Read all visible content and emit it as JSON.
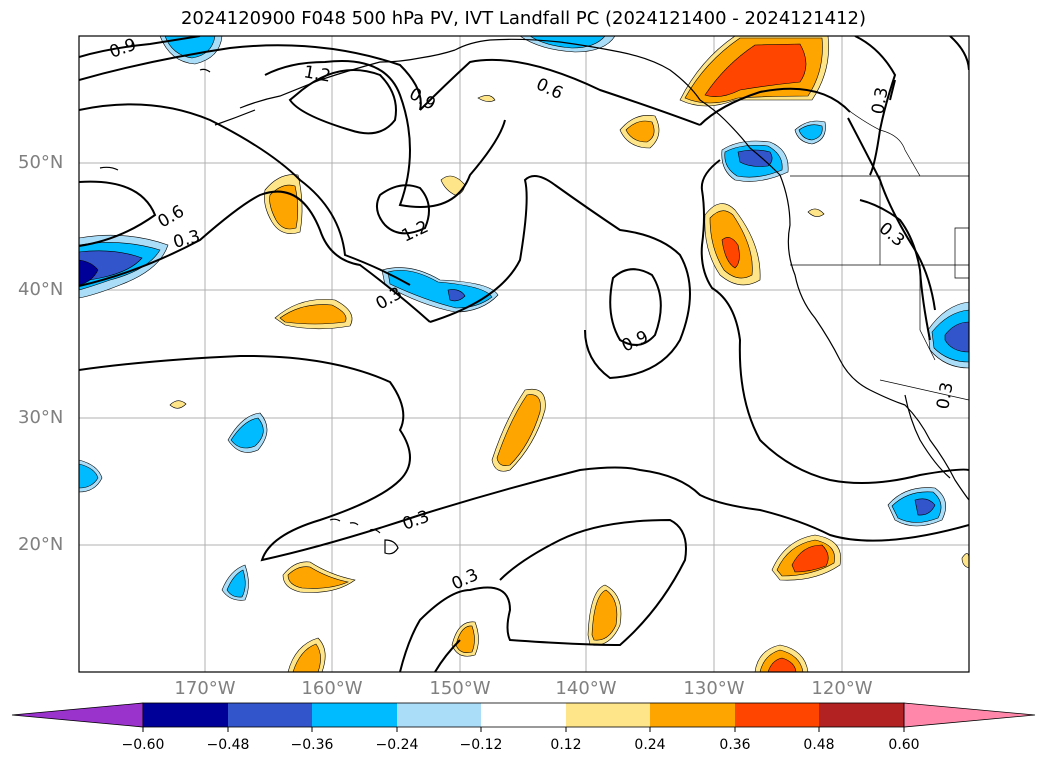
{
  "title": "2024120900 F048 500 hPa PV, IVT Landfall PC (2024121400 - 2024121412)",
  "lat_labels": [
    "50°N",
    "40°N",
    "30°N",
    "20°N"
  ],
  "lon_labels": [
    "170°W",
    "160°W",
    "150°W",
    "140°W",
    "130°W",
    "120°W"
  ],
  "contour_labels": [
    "0.9",
    "1.2",
    "0.9",
    "0.6",
    "0.3",
    "0.6",
    "0.3",
    "1.2",
    "0.3",
    "0.9",
    "0.3",
    "0.3",
    "0.3",
    "0.3"
  ],
  "colorbar": {
    "ticks": [
      "−0.60",
      "−0.48",
      "−0.36",
      "−0.24",
      "−0.12",
      "0.12",
      "0.24",
      "0.36",
      "0.48",
      "0.60"
    ],
    "colors": [
      "#9933cc",
      "#000099",
      "#3355cc",
      "#00bbff",
      "#aaddf8",
      "#ffffff",
      "#ffe58a",
      "#ffa500",
      "#ff4500",
      "#b22222",
      "#ff88aa"
    ]
  },
  "colors": {
    "neg_light": "#aaddf8",
    "neg_mid": "#00bbff",
    "neg_strong": "#3355cc",
    "neg_max": "#000099",
    "pos_light": "#ffe58a",
    "pos_mid": "#ffa500",
    "pos_strong": "#ff4500"
  }
}
